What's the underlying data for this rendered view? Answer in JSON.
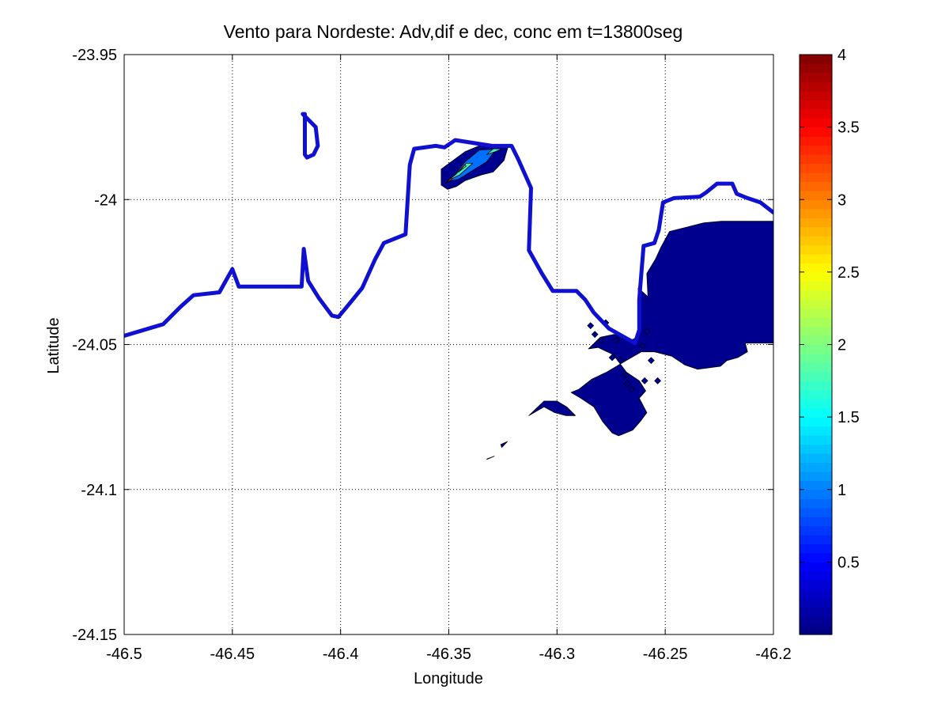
{
  "chart_data": {
    "type": "contour",
    "title": "Vento para Nordeste: Adv,dif e dec, conc em t=13800seg",
    "xlabel": "Longitude",
    "ylabel": "Latitude",
    "xlim": [
      -46.5,
      -46.2
    ],
    "ylim": [
      -24.15,
      -23.95
    ],
    "x_ticks": [
      -46.5,
      -46.45,
      -46.4,
      -46.35,
      -46.3,
      -46.25,
      -46.2
    ],
    "x_tick_labels": [
      "-46.5",
      "-46.45",
      "-46.4",
      "-46.35",
      "-46.3",
      "-46.25",
      "-46.2"
    ],
    "y_ticks": [
      -23.95,
      -24.0,
      -24.05,
      -24.1,
      -24.15
    ],
    "y_tick_labels": [
      "-23.95",
      "-24",
      "-24.05",
      "-24.1",
      "-24.15"
    ],
    "grid": true,
    "colorbar": {
      "colormap": "jet",
      "range": [
        0,
        4
      ],
      "ticks": [
        0.5,
        1,
        1.5,
        2,
        2.5,
        3,
        3.5,
        4
      ],
      "tick_labels": [
        "0.5",
        "1",
        "1.5",
        "2",
        "2.5",
        "3",
        "3.5",
        "4"
      ]
    },
    "coastline": {
      "color": "#1010d0",
      "main": [
        [
          -46.5,
          -24.047
        ],
        [
          -46.482,
          -24.043
        ],
        [
          -46.474,
          -24.037
        ],
        [
          -46.468,
          -24.033
        ],
        [
          -46.456,
          -24.032
        ],
        [
          -46.45,
          -24.024
        ],
        [
          -46.447,
          -24.03
        ],
        [
          -46.433,
          -24.03
        ],
        [
          -46.418,
          -24.03
        ],
        [
          -46.417,
          -24.017
        ],
        [
          -46.415,
          -24.028
        ],
        [
          -46.41,
          -24.034
        ],
        [
          -46.404,
          -24.04
        ],
        [
          -46.401,
          -24.0405
        ],
        [
          -46.396,
          -24.036
        ],
        [
          -46.39,
          -24.0305
        ],
        [
          -46.384,
          -24.0205
        ],
        [
          -46.38,
          -24.015
        ],
        [
          -46.37,
          -24.012
        ],
        [
          -46.369,
          -24.0
        ],
        [
          -46.368,
          -23.988
        ],
        [
          -46.366,
          -23.9825
        ],
        [
          -46.356,
          -23.9815
        ],
        [
          -46.352,
          -23.982
        ],
        [
          -46.347,
          -23.9795
        ],
        [
          -46.33,
          -23.9815
        ],
        [
          -46.321,
          -23.9815
        ],
        [
          -46.318,
          -23.986
        ],
        [
          -46.312,
          -23.996
        ],
        [
          -46.313,
          -24.0175
        ],
        [
          -46.307,
          -24.0255
        ],
        [
          -46.302,
          -24.0315
        ],
        [
          -46.291,
          -24.0315
        ],
        [
          -46.287,
          -24.0345
        ],
        [
          -46.283,
          -24.039
        ],
        [
          -46.276,
          -24.0445
        ],
        [
          -46.264,
          -24.0495
        ],
        [
          -46.262,
          -24.045
        ],
        [
          -46.262,
          -24.0345
        ],
        [
          -46.26,
          -24.016
        ],
        [
          -46.255,
          -24.015
        ],
        [
          -46.253,
          -24.0105
        ],
        [
          -46.251,
          -24.001
        ],
        [
          -46.246,
          -23.9995
        ],
        [
          -46.234,
          -23.999
        ],
        [
          -46.231,
          -23.9975
        ],
        [
          -46.226,
          -23.9945
        ],
        [
          -46.219,
          -23.9945
        ],
        [
          -46.217,
          -23.998
        ],
        [
          -46.212,
          -23.9995
        ],
        [
          -46.206,
          -24.001
        ],
        [
          -46.2,
          -24.0045
        ]
      ],
      "island": [
        [
          -46.4175,
          -23.9705
        ],
        [
          -46.4165,
          -23.9705
        ],
        [
          -46.4165,
          -23.9845
        ],
        [
          -46.4155,
          -23.9855
        ],
        [
          -46.4125,
          -23.9845
        ],
        [
          -46.4105,
          -23.9815
        ],
        [
          -46.4115,
          -23.975
        ],
        [
          -46.4175,
          -23.9705
        ]
      ]
    },
    "plumes": [
      {
        "level": 0.1,
        "color": "#00008f",
        "polygon": [
          [
            -46.248,
            -24.011
          ],
          [
            -46.24,
            -24.0095
          ],
          [
            -46.232,
            -24.008
          ],
          [
            -46.224,
            -24.0075
          ],
          [
            -46.215,
            -24.0075
          ],
          [
            -46.2,
            -24.0075
          ],
          [
            -46.2,
            -24.0495
          ],
          [
            -46.213,
            -24.0495
          ],
          [
            -46.212,
            -24.0525
          ],
          [
            -46.2165,
            -24.0545
          ],
          [
            -46.2215,
            -24.0555
          ],
          [
            -46.2245,
            -24.0575
          ],
          [
            -46.235,
            -24.0585
          ],
          [
            -46.241,
            -24.057
          ],
          [
            -46.247,
            -24.054
          ],
          [
            -46.255,
            -24.0525
          ],
          [
            -46.261,
            -24.0525
          ],
          [
            -46.268,
            -24.0555
          ],
          [
            -46.277,
            -24.0595
          ],
          [
            -46.284,
            -24.062
          ],
          [
            -46.29,
            -24.0655
          ],
          [
            -46.2935,
            -24.0665
          ],
          [
            -46.289,
            -24.0685
          ],
          [
            -46.283,
            -24.0715
          ],
          [
            -46.279,
            -24.0765
          ],
          [
            -46.2745,
            -24.0805
          ],
          [
            -46.2715,
            -24.0815
          ],
          [
            -46.265,
            -24.0795
          ],
          [
            -46.2615,
            -24.0765
          ],
          [
            -46.2585,
            -24.0735
          ],
          [
            -46.262,
            -24.0685
          ],
          [
            -46.259,
            -24.066
          ],
          [
            -46.262,
            -24.0625
          ],
          [
            -46.268,
            -24.0595
          ],
          [
            -46.274,
            -24.0535
          ],
          [
            -46.281,
            -24.051
          ],
          [
            -46.2855,
            -24.0515
          ],
          [
            -46.28,
            -24.0475
          ],
          [
            -46.2735,
            -24.0465
          ],
          [
            -46.266,
            -24.0485
          ],
          [
            -46.2625,
            -24.0475
          ],
          [
            -46.2625,
            -24.0305
          ],
          [
            -46.258,
            -24.0335
          ],
          [
            -46.2585,
            -24.0255
          ],
          [
            -46.2545,
            -24.0205
          ],
          [
            -46.252,
            -24.0165
          ],
          [
            -46.248,
            -24.011
          ]
        ]
      },
      {
        "level": 0.1,
        "color": "#00008f",
        "polygon": [
          [
            -46.313,
            -24.0745
          ],
          [
            -46.306,
            -24.0715
          ],
          [
            -46.301,
            -24.0735
          ],
          [
            -46.296,
            -24.0745
          ],
          [
            -46.2915,
            -24.0745
          ],
          [
            -46.2955,
            -24.0715
          ],
          [
            -46.3,
            -24.0695
          ],
          [
            -46.306,
            -24.0695
          ],
          [
            -46.313,
            -24.0745
          ]
        ]
      },
      {
        "level": 0.1,
        "color": "#00008f",
        "polygon": [
          [
            -46.3325,
            -24.0895
          ],
          [
            -46.329,
            -24.0885
          ],
          [
            -46.332,
            -24.0895
          ]
        ]
      },
      {
        "level": 0.1,
        "color": "#00008f",
        "polygon": [
          [
            -46.3255,
            -24.0855
          ],
          [
            -46.323,
            -24.0835
          ],
          [
            -46.326,
            -24.0845
          ]
        ]
      },
      {
        "level": 0.1,
        "color": "#00008f",
        "polygon": [
          [
            -46.3535,
            -23.9895
          ],
          [
            -46.3425,
            -23.9835
          ],
          [
            -46.336,
            -23.9815
          ],
          [
            -46.3225,
            -23.9815
          ],
          [
            -46.3245,
            -23.9865
          ],
          [
            -46.3295,
            -23.9905
          ],
          [
            -46.335,
            -23.9915
          ],
          [
            -46.3425,
            -23.9935
          ],
          [
            -46.3465,
            -23.9955
          ],
          [
            -46.3505,
            -23.9965
          ],
          [
            -46.3535,
            -23.995
          ],
          [
            -46.3535,
            -23.9895
          ]
        ]
      },
      {
        "level": 0.8,
        "color": "#0070ff",
        "polygon": [
          [
            -46.3495,
            -23.9935
          ],
          [
            -46.3425,
            -23.987
          ],
          [
            -46.336,
            -23.983
          ],
          [
            -46.328,
            -23.9825
          ],
          [
            -46.3325,
            -23.987
          ],
          [
            -46.338,
            -23.9895
          ],
          [
            -46.3455,
            -23.993
          ],
          [
            -46.3495,
            -23.9935
          ]
        ]
      },
      {
        "level": 1.6,
        "color": "#40f0c0",
        "polygon": [
          [
            -46.3505,
            -23.9935
          ],
          [
            -46.345,
            -23.9915
          ],
          [
            -46.339,
            -23.9875
          ],
          [
            -46.342,
            -23.9875
          ],
          [
            -46.347,
            -23.9915
          ],
          [
            -46.3505,
            -23.9935
          ]
        ]
      },
      {
        "level": 1.6,
        "color": "#40f0c0",
        "polygon": [
          [
            -46.3325,
            -23.9845
          ],
          [
            -46.3285,
            -23.9835
          ],
          [
            -46.3255,
            -23.9825
          ],
          [
            -46.3295,
            -23.9825
          ],
          [
            -46.3325,
            -23.9845
          ]
        ]
      },
      {
        "level": 2.2,
        "color": "#a0ff60",
        "polygon": [
          [
            -46.3455,
            -23.9905
          ],
          [
            -46.342,
            -23.9885
          ],
          [
            -46.3425,
            -23.988
          ],
          [
            -46.3455,
            -23.9905
          ]
        ]
      },
      {
        "level": 3.4,
        "color": "#ff4010",
        "polygon": [
          [
            -46.3515,
            -23.9945
          ],
          [
            -46.3485,
            -23.993
          ],
          [
            -46.349,
            -23.9925
          ],
          [
            -46.3515,
            -23.9945
          ]
        ]
      }
    ],
    "speckles": [
      [
        -46.2845,
        -24.0435
      ],
      [
        -46.2825,
        -24.0465
      ],
      [
        -46.2795,
        -24.0485
      ],
      [
        -46.2775,
        -24.0425
      ],
      [
        -46.2745,
        -24.0545
      ],
      [
        -46.2725,
        -24.0485
      ],
      [
        -46.2705,
        -24.0555
      ],
      [
        -46.2685,
        -24.0605
      ],
      [
        -46.2675,
        -24.0635
      ],
      [
        -46.2655,
        -24.0655
      ],
      [
        -46.2595,
        -24.0625
      ],
      [
        -46.2535,
        -24.0625
      ],
      [
        -46.2565,
        -24.0555
      ],
      [
        -46.2585,
        -24.0455
      ],
      [
        -46.2605,
        -24.0505
      ]
    ]
  }
}
